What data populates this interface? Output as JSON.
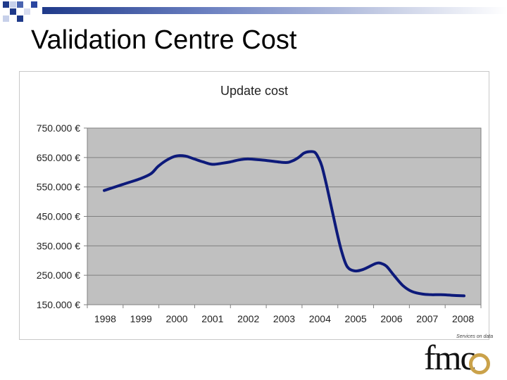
{
  "slide": {
    "title": "Validation Centre Cost",
    "accent_color": "#1f3a8a"
  },
  "chart_data": {
    "type": "line",
    "title": "Update cost",
    "xlabel": "",
    "ylabel": "",
    "categories": [
      "1998",
      "1999",
      "2000",
      "2001",
      "2002",
      "2003",
      "2004",
      "2005",
      "2006",
      "2007",
      "2008"
    ],
    "y_tick_labels": [
      "150.000 €",
      "250.000 €",
      "350.000 €",
      "450.000 €",
      "550.000 €",
      "650.000 €",
      "750.000 €"
    ],
    "y_ticks": [
      150000,
      250000,
      350000,
      450000,
      550000,
      650000,
      750000
    ],
    "ylim": [
      150000,
      750000
    ],
    "xlim": [
      1998,
      2008
    ],
    "grid": true,
    "series": [
      {
        "name": "Update cost",
        "color": "#0d1a7a",
        "points": [
          [
            1998.0,
            538000
          ],
          [
            1998.5,
            558000
          ],
          [
            1999.0,
            578000
          ],
          [
            1999.3,
            595000
          ],
          [
            1999.5,
            620000
          ],
          [
            1999.75,
            642000
          ],
          [
            2000.0,
            655000
          ],
          [
            2000.25,
            655000
          ],
          [
            2000.5,
            645000
          ],
          [
            2000.75,
            635000
          ],
          [
            2001.0,
            627000
          ],
          [
            2001.25,
            630000
          ],
          [
            2001.5,
            635000
          ],
          [
            2001.75,
            642000
          ],
          [
            2002.0,
            645000
          ],
          [
            2002.5,
            640000
          ],
          [
            2003.0,
            633000
          ],
          [
            2003.2,
            637000
          ],
          [
            2003.4,
            650000
          ],
          [
            2003.55,
            665000
          ],
          [
            2003.7,
            670000
          ],
          [
            2003.85,
            668000
          ],
          [
            2003.95,
            650000
          ],
          [
            2004.05,
            620000
          ],
          [
            2004.2,
            545000
          ],
          [
            2004.45,
            405000
          ],
          [
            2004.6,
            330000
          ],
          [
            2004.75,
            280000
          ],
          [
            2004.95,
            265000
          ],
          [
            2005.2,
            270000
          ],
          [
            2005.55,
            290000
          ],
          [
            2005.7,
            290000
          ],
          [
            2005.85,
            280000
          ],
          [
            2006.05,
            250000
          ],
          [
            2006.3,
            215000
          ],
          [
            2006.55,
            195000
          ],
          [
            2006.85,
            186000
          ],
          [
            2007.1,
            184000
          ],
          [
            2007.35,
            184000
          ],
          [
            2007.65,
            182000
          ],
          [
            2008.0,
            180000
          ]
        ]
      }
    ]
  },
  "logo": {
    "wordmark": "fmc",
    "tagline": "Services on data",
    "ring_color": "#caa24a"
  }
}
